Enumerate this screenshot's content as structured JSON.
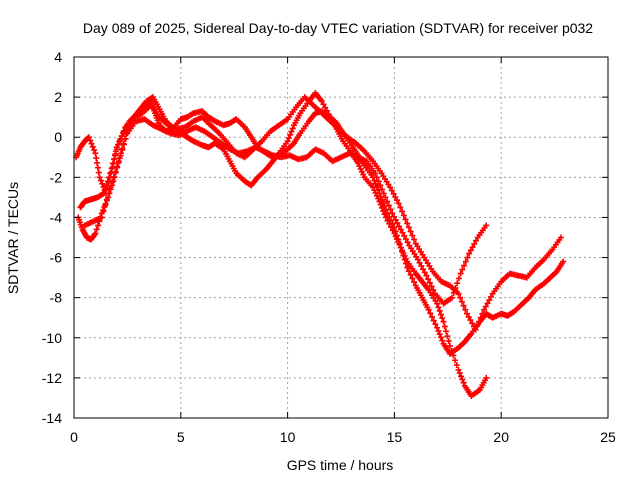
{
  "chart_data": {
    "type": "scatter",
    "title": "Day 089 of 2025, Sidereal Day-to-day VTEC variation (SDTVAR) for receiver p032",
    "xlabel": "GPS time / hours",
    "ylabel": "SDTVAR / TECUs",
    "xlim": [
      0,
      25
    ],
    "ylim": [
      -14,
      4
    ],
    "xticks": [
      "0",
      "5",
      "10",
      "15",
      "20",
      "25"
    ],
    "yticks": [
      "4",
      "2",
      "0",
      "-2",
      "-4",
      "-6",
      "-8",
      "-10",
      "-12",
      "-14"
    ],
    "grid": true,
    "marker": "+",
    "color": "#ff0000",
    "series": [
      {
        "x": [
          0.1,
          0.3,
          0.5,
          0.7,
          1.0,
          1.2,
          1.5,
          1.8,
          2.0,
          2.3,
          2.6,
          3.0,
          3.3,
          3.6,
          3.8,
          4.0,
          4.3,
          4.6,
          5.0,
          5.3,
          5.6,
          6.0,
          6.3,
          6.6,
          7.0,
          7.3,
          7.6,
          8.0,
          8.3,
          8.6,
          9.0,
          9.3,
          9.6,
          10.0,
          10.3,
          10.6,
          11.0,
          11.3,
          11.6,
          12.0,
          12.3,
          12.6,
          13.0,
          13.3,
          13.6,
          14.0,
          14.3,
          14.6,
          15.0,
          15.3,
          15.6,
          16.0,
          16.3,
          16.6,
          17.0,
          17.3,
          17.6,
          18.0,
          18.3,
          18.6,
          19.0,
          19.3,
          19.6,
          20.0,
          20.3,
          20.6,
          21.0,
          21.3,
          21.6,
          22.0,
          22.3,
          22.6,
          22.9
        ],
        "y": [
          -1.0,
          -0.5,
          -0.2,
          0.0,
          -0.8,
          -2.0,
          -2.8,
          -1.5,
          -0.5,
          0.2,
          0.8,
          1.2,
          1.5,
          1.8,
          1.2,
          0.6,
          0.3,
          0.4,
          0.9,
          1.0,
          1.2,
          1.3,
          1.0,
          0.8,
          0.6,
          0.7,
          0.9,
          0.5,
          0.0,
          -0.5,
          -0.8,
          -1.0,
          -0.9,
          -0.6,
          -0.3,
          0.2,
          0.8,
          1.2,
          1.3,
          1.0,
          0.7,
          0.2,
          -0.4,
          -0.9,
          -1.4,
          -2.0,
          -2.8,
          -3.6,
          -4.5,
          -5.5,
          -6.5,
          -7.4,
          -8.0,
          -8.6,
          -9.5,
          -10.3,
          -10.8,
          -10.5,
          -10.2,
          -9.8,
          -9.2,
          -8.8,
          -9.0,
          -8.8,
          -8.9,
          -8.7,
          -8.3,
          -8.0,
          -7.6,
          -7.3,
          -7.0,
          -6.7,
          -6.2
        ]
      },
      {
        "x": [
          0.2,
          0.4,
          0.6,
          0.8,
          1.0,
          1.3,
          1.6,
          1.9,
          2.2,
          2.5,
          2.8,
          3.1,
          3.4,
          3.7,
          4.0,
          4.3,
          4.6,
          5.0,
          5.3,
          5.6,
          6.0,
          6.3,
          6.6,
          7.0,
          7.3,
          7.6,
          8.0,
          8.3,
          8.6,
          9.0,
          9.3,
          9.6,
          10.0,
          10.3,
          10.6,
          11.0,
          11.3,
          11.6,
          12.0,
          12.3,
          12.6,
          13.0,
          13.3,
          13.6,
          14.0,
          14.3,
          14.6,
          15.0,
          15.3,
          15.6,
          16.0,
          16.3,
          16.6,
          17.0,
          17.3,
          17.6,
          18.0,
          18.3,
          18.6,
          19.0,
          19.3
        ],
        "y": [
          -4.0,
          -4.6,
          -5.0,
          -5.1,
          -4.8,
          -3.8,
          -3.0,
          -2.0,
          -0.8,
          0.4,
          1.0,
          1.4,
          1.8,
          2.0,
          1.4,
          0.8,
          0.5,
          0.2,
          0.0,
          -0.2,
          -0.4,
          -0.5,
          -0.3,
          -0.6,
          -1.2,
          -1.8,
          -2.2,
          -2.4,
          -2.0,
          -1.6,
          -1.2,
          -0.8,
          -0.2,
          0.6,
          1.2,
          1.8,
          2.2,
          1.8,
          1.0,
          0.4,
          -0.2,
          -0.8,
          -1.3,
          -2.0,
          -2.5,
          -3.2,
          -4.0,
          -4.8,
          -5.5,
          -6.2,
          -6.8,
          -7.2,
          -7.6,
          -8.3,
          -9.2,
          -10.4,
          -11.6,
          -12.4,
          -12.9,
          -12.6,
          -12.0
        ]
      },
      {
        "x": [
          0.3,
          0.5,
          0.8,
          1.1,
          1.4,
          1.7,
          2.0,
          2.4,
          2.8,
          3.2,
          3.6,
          4.0,
          4.4,
          4.8,
          5.2,
          5.6,
          6.0,
          6.4,
          6.8,
          7.2,
          7.6,
          8.0,
          8.4,
          8.8,
          9.2,
          9.6,
          10.0,
          10.4,
          10.8,
          11.2,
          11.6,
          12.0,
          12.4,
          12.8,
          13.2,
          13.6,
          14.0,
          14.4,
          14.8,
          15.2,
          15.6,
          16.0,
          16.4,
          16.8,
          17.2,
          17.6,
          18.0,
          18.4,
          18.8,
          19.2,
          19.6,
          20.0,
          20.4,
          20.8,
          21.2,
          21.6,
          22.0,
          22.4,
          22.8
        ],
        "y": [
          -3.5,
          -3.2,
          -3.1,
          -3.0,
          -2.8,
          -1.8,
          -0.6,
          0.5,
          1.0,
          1.2,
          1.6,
          1.0,
          0.6,
          0.4,
          0.5,
          0.8,
          1.0,
          0.6,
          0.2,
          -0.3,
          -0.8,
          -1.0,
          -0.6,
          -0.2,
          0.3,
          0.6,
          0.9,
          1.5,
          2.0,
          1.6,
          1.2,
          0.8,
          0.4,
          0.0,
          -0.3,
          -0.7,
          -1.2,
          -1.8,
          -2.5,
          -3.3,
          -4.3,
          -5.3,
          -6.0,
          -6.7,
          -7.2,
          -7.4,
          -7.8,
          -8.8,
          -9.6,
          -8.6,
          -7.8,
          -7.2,
          -6.8,
          -6.9,
          -7.0,
          -6.5,
          -6.1,
          -5.6,
          -5.0
        ]
      },
      {
        "x": [
          0.5,
          0.9,
          1.3,
          1.7,
          2.1,
          2.5,
          2.9,
          3.3,
          3.7,
          4.1,
          4.5,
          4.9,
          5.3,
          5.7,
          6.1,
          6.5,
          6.9,
          7.3,
          7.7,
          8.1,
          8.5,
          8.9,
          9.3,
          9.7,
          10.1,
          10.5,
          10.9,
          11.3,
          11.7,
          12.1,
          12.5,
          12.9,
          13.3,
          13.7,
          14.1,
          14.5,
          14.9,
          15.3,
          15.7,
          16.1,
          16.5,
          16.9,
          17.3,
          17.7,
          18.1,
          18.5,
          18.9,
          19.3
        ],
        "y": [
          -4.4,
          -4.2,
          -4.0,
          -2.5,
          -1.2,
          0.2,
          0.8,
          0.9,
          0.6,
          0.4,
          0.2,
          0.1,
          0.3,
          0.5,
          0.3,
          0.0,
          -0.3,
          -0.6,
          -0.8,
          -0.7,
          -0.5,
          -0.7,
          -0.9,
          -1.0,
          -0.9,
          -1.1,
          -1.0,
          -0.6,
          -0.8,
          -1.2,
          -1.0,
          -0.8,
          -1.0,
          -1.2,
          -1.8,
          -2.8,
          -3.8,
          -4.6,
          -5.4,
          -6.1,
          -6.9,
          -7.8,
          -8.3,
          -8.0,
          -6.8,
          -5.8,
          -5.0,
          -4.4
        ]
      }
    ]
  }
}
